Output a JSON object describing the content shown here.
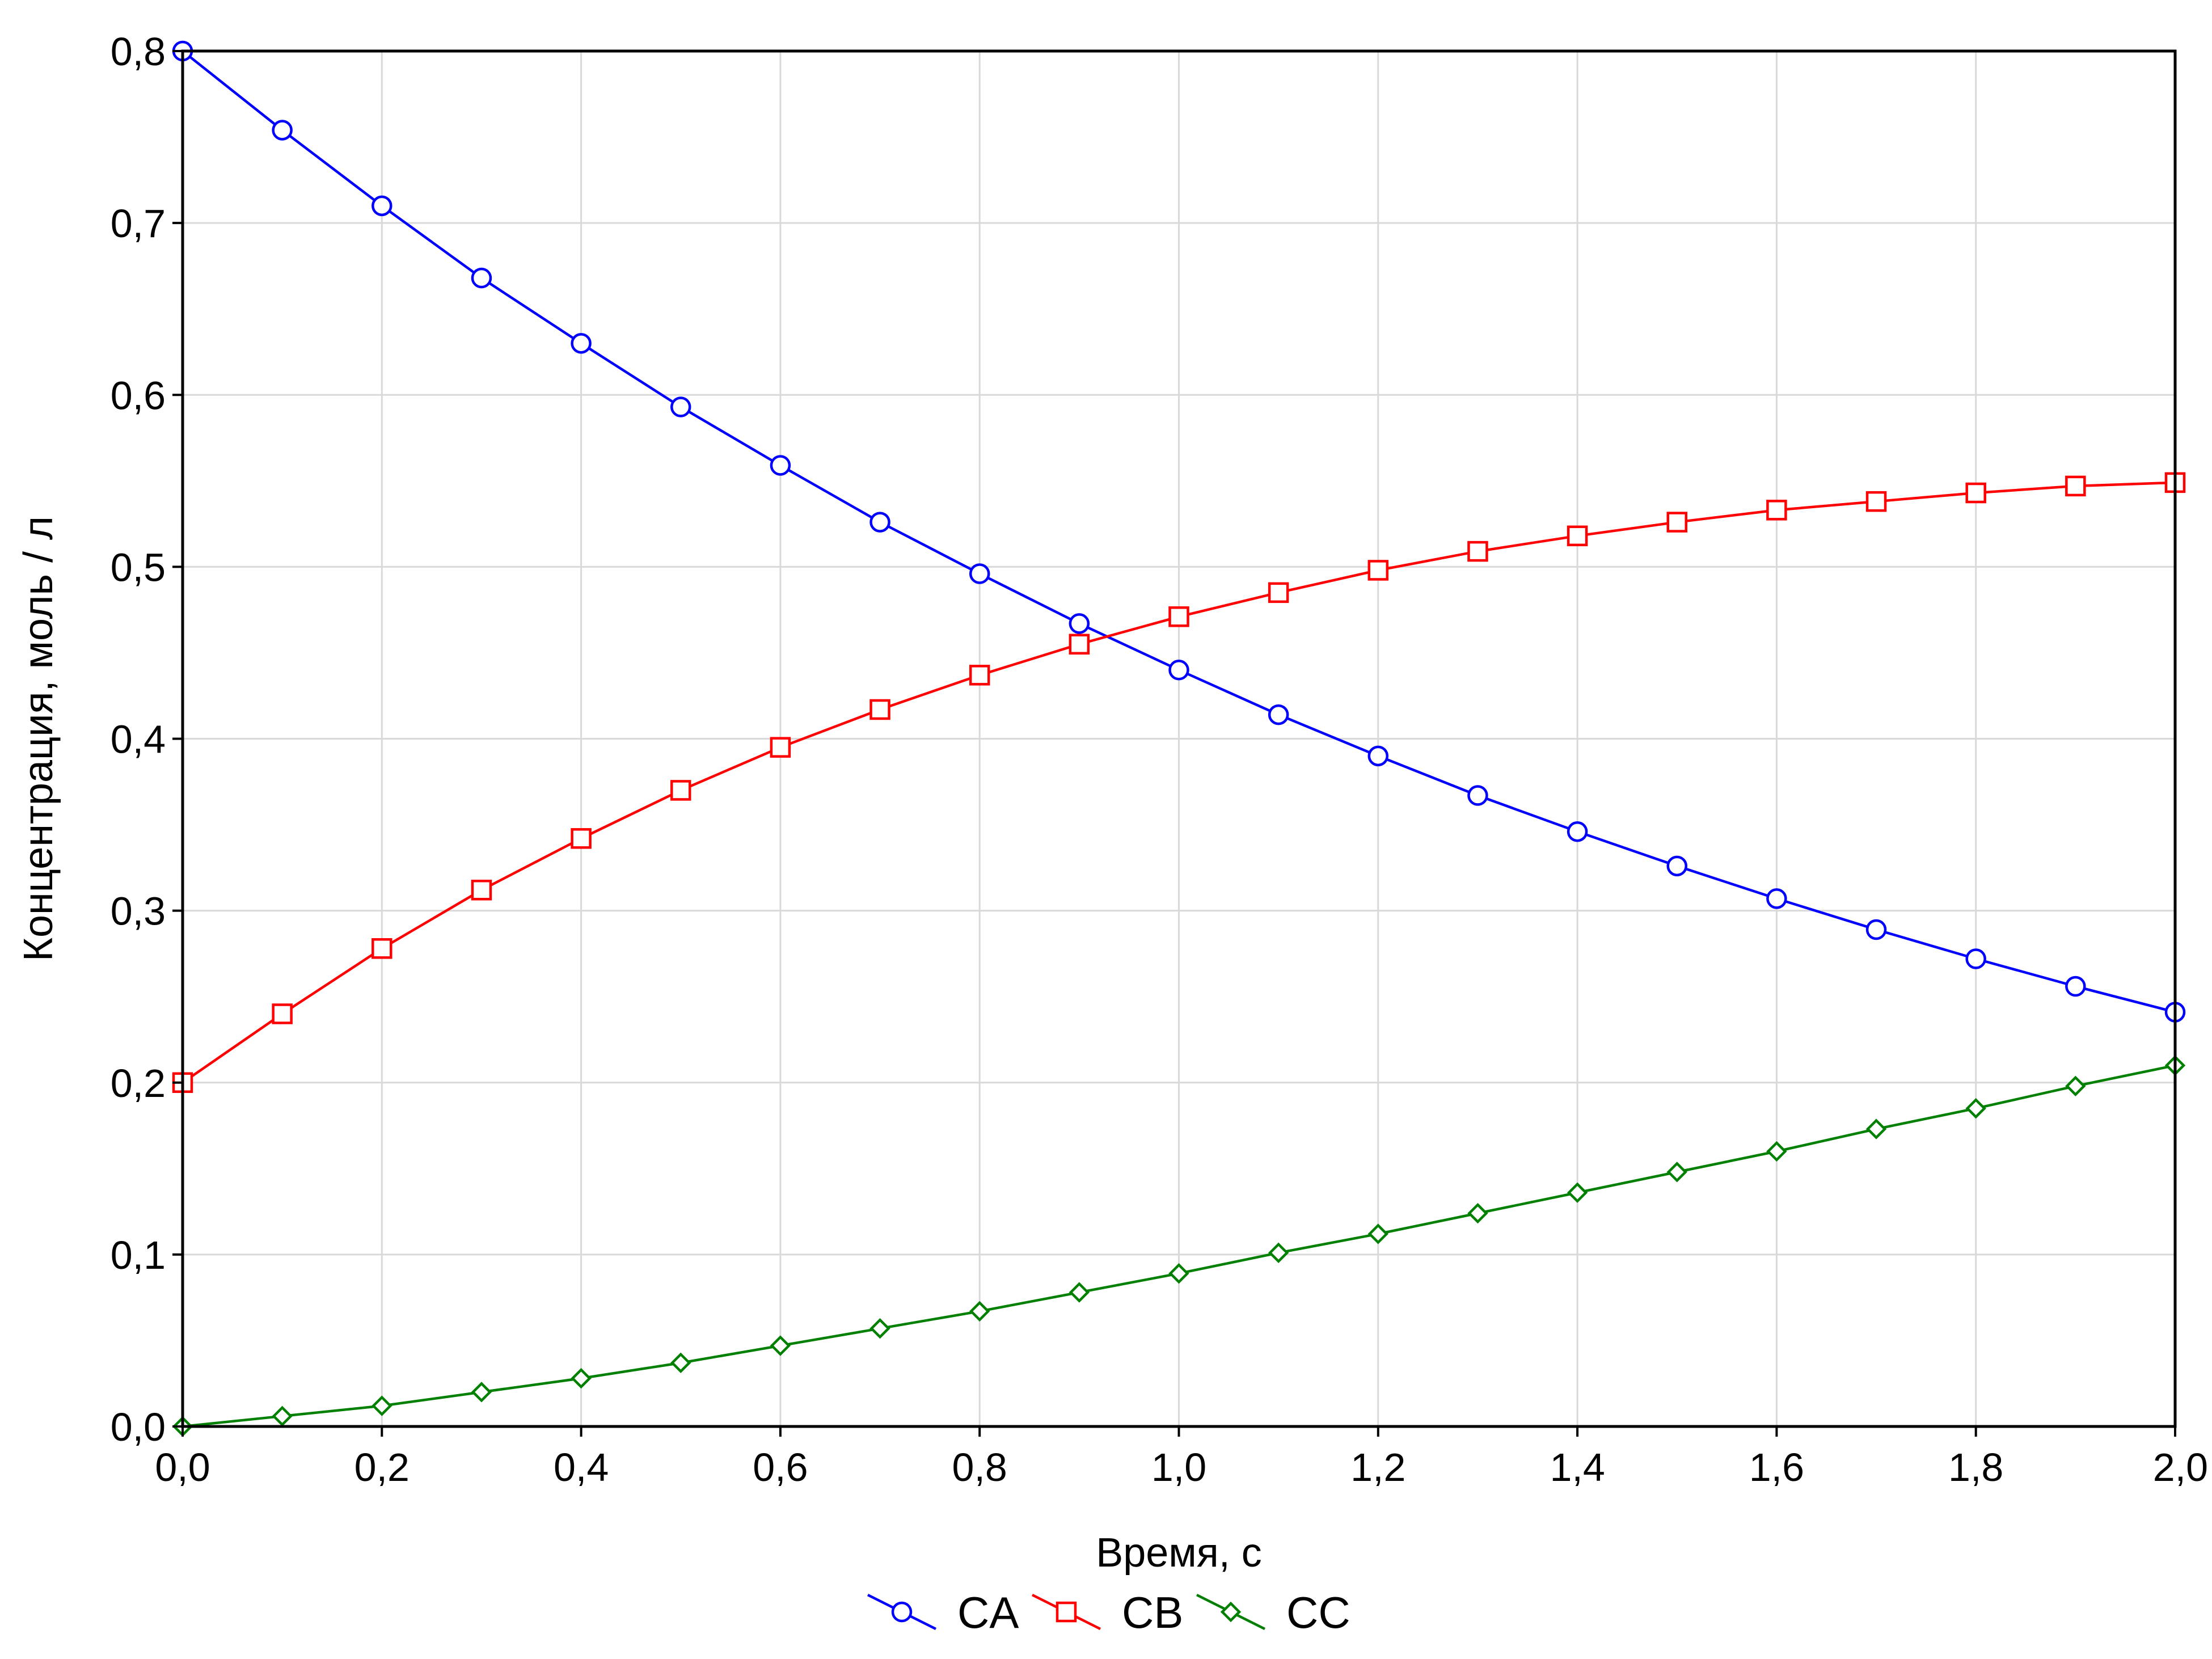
{
  "chart_data": {
    "type": "line",
    "title": "",
    "xlabel": "Время, с",
    "ylabel": "Концентрация, моль / л",
    "xlim": [
      0,
      2
    ],
    "ylim": [
      0,
      0.8
    ],
    "grid": true,
    "legend_position": "bottom-center",
    "x_ticks": [
      "0,0",
      "0,2",
      "0,4",
      "0,6",
      "0,8",
      "1,0",
      "1,2",
      "1,4",
      "1,6",
      "1,8",
      "2,0"
    ],
    "y_ticks": [
      "0,0",
      "0,1",
      "0,2",
      "0,3",
      "0,4",
      "0,5",
      "0,6",
      "0,7",
      "0,8"
    ],
    "x": [
      0.0,
      0.1,
      0.2,
      0.3,
      0.4,
      0.5,
      0.6,
      0.7,
      0.8,
      0.9,
      1.0,
      1.1,
      1.2,
      1.3,
      1.4,
      1.5,
      1.6,
      1.7,
      1.8,
      1.9,
      2.0
    ],
    "series": [
      {
        "name": "CA",
        "color": "#0000ff",
        "marker": "circle",
        "values": [
          0.8,
          0.754,
          0.71,
          0.668,
          0.63,
          0.593,
          0.559,
          0.526,
          0.496,
          0.467,
          0.44,
          0.414,
          0.39,
          0.367,
          0.346,
          0.326,
          0.307,
          0.289,
          0.272,
          0.256,
          0.241
        ]
      },
      {
        "name": "CB",
        "color": "#ff0000",
        "marker": "square",
        "values": [
          0.2,
          0.24,
          0.278,
          0.312,
          0.342,
          0.37,
          0.395,
          0.417,
          0.437,
          0.455,
          0.471,
          0.485,
          0.498,
          0.509,
          0.518,
          0.526,
          0.533,
          0.538,
          0.543,
          0.547,
          0.549
        ]
      },
      {
        "name": "CC",
        "color": "#008000",
        "marker": "diamond",
        "values": [
          0.0,
          0.006,
          0.012,
          0.02,
          0.028,
          0.037,
          0.047,
          0.057,
          0.067,
          0.078,
          0.089,
          0.101,
          0.112,
          0.124,
          0.136,
          0.148,
          0.16,
          0.173,
          0.185,
          0.198,
          0.21
        ]
      }
    ]
  }
}
